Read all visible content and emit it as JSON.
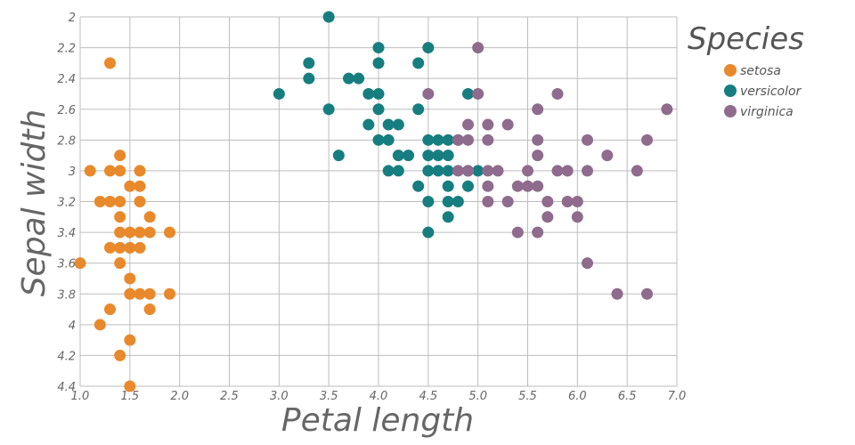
{
  "chart_data": {
    "type": "scatter",
    "xlabel": "Petal length",
    "ylabel": "Sepal width",
    "xlim": [
      1.0,
      7.0
    ],
    "ylim": [
      2.0,
      4.4
    ],
    "y_inverted": true,
    "x_ticks": [
      "1.0",
      "1.5",
      "2.0",
      "2.5",
      "3.0",
      "3.5",
      "4.0",
      "4.5",
      "5.0",
      "5.5",
      "6.0",
      "6.5",
      "7.0"
    ],
    "y_ticks": [
      "2",
      "2.2",
      "2.4",
      "2.6",
      "2.8",
      "3",
      "3.2",
      "3.4",
      "3.6",
      "3.8",
      "4",
      "4.2",
      "4.4"
    ],
    "grid": true,
    "legend": {
      "title": "Species",
      "position": "top-right"
    },
    "series": [
      {
        "name": "setosa",
        "color": "#e8892b",
        "points": [
          [
            1.3,
            2.3
          ],
          [
            1.1,
            3.0
          ],
          [
            1.3,
            3.0
          ],
          [
            1.4,
            3.0
          ],
          [
            1.6,
            3.0
          ],
          [
            1.4,
            2.9
          ],
          [
            1.5,
            3.1
          ],
          [
            1.6,
            3.1
          ],
          [
            1.2,
            3.2
          ],
          [
            1.3,
            3.2
          ],
          [
            1.4,
            3.2
          ],
          [
            1.6,
            3.2
          ],
          [
            1.4,
            3.3
          ],
          [
            1.7,
            3.3
          ],
          [
            1.4,
            3.4
          ],
          [
            1.5,
            3.4
          ],
          [
            1.6,
            3.4
          ],
          [
            1.7,
            3.4
          ],
          [
            1.9,
            3.4
          ],
          [
            1.3,
            3.5
          ],
          [
            1.4,
            3.5
          ],
          [
            1.5,
            3.5
          ],
          [
            1.6,
            3.5
          ],
          [
            1.0,
            3.6
          ],
          [
            1.4,
            3.6
          ],
          [
            1.5,
            3.7
          ],
          [
            1.5,
            3.8
          ],
          [
            1.6,
            3.8
          ],
          [
            1.7,
            3.8
          ],
          [
            1.9,
            3.8
          ],
          [
            1.3,
            3.9
          ],
          [
            1.7,
            3.9
          ],
          [
            1.2,
            4.0
          ],
          [
            1.5,
            4.1
          ],
          [
            1.4,
            4.2
          ],
          [
            1.5,
            4.4
          ]
        ]
      },
      {
        "name": "versicolor",
        "color": "#177e80",
        "points": [
          [
            3.5,
            2.0
          ],
          [
            4.0,
            2.2
          ],
          [
            4.5,
            2.2
          ],
          [
            3.3,
            2.3
          ],
          [
            4.0,
            2.3
          ],
          [
            4.4,
            2.3
          ],
          [
            3.3,
            2.4
          ],
          [
            3.7,
            2.4
          ],
          [
            3.8,
            2.4
          ],
          [
            3.0,
            2.5
          ],
          [
            3.9,
            2.5
          ],
          [
            4.0,
            2.5
          ],
          [
            4.9,
            2.5
          ],
          [
            3.5,
            2.6
          ],
          [
            4.0,
            2.6
          ],
          [
            4.4,
            2.6
          ],
          [
            3.9,
            2.7
          ],
          [
            4.1,
            2.7
          ],
          [
            4.2,
            2.7
          ],
          [
            4.0,
            2.8
          ],
          [
            4.1,
            2.8
          ],
          [
            4.5,
            2.8
          ],
          [
            4.6,
            2.8
          ],
          [
            4.7,
            2.8
          ],
          [
            4.8,
            2.8
          ],
          [
            3.6,
            2.9
          ],
          [
            4.2,
            2.9
          ],
          [
            4.3,
            2.9
          ],
          [
            4.5,
            2.9
          ],
          [
            4.6,
            2.9
          ],
          [
            4.7,
            2.9
          ],
          [
            4.1,
            3.0
          ],
          [
            4.2,
            3.0
          ],
          [
            4.5,
            3.0
          ],
          [
            4.6,
            3.0
          ],
          [
            4.7,
            3.0
          ],
          [
            4.9,
            3.0
          ],
          [
            5.0,
            3.0
          ],
          [
            4.4,
            3.1
          ],
          [
            4.7,
            3.1
          ],
          [
            4.9,
            3.1
          ],
          [
            4.5,
            3.2
          ],
          [
            4.7,
            3.2
          ],
          [
            4.8,
            3.2
          ],
          [
            4.7,
            3.3
          ],
          [
            4.5,
            3.4
          ]
        ]
      },
      {
        "name": "virginica",
        "color": "#8f6b8d",
        "points": [
          [
            5.0,
            2.2
          ],
          [
            4.5,
            2.5
          ],
          [
            5.0,
            2.5
          ],
          [
            5.8,
            2.5
          ],
          [
            5.6,
            2.6
          ],
          [
            6.9,
            2.6
          ],
          [
            4.9,
            2.7
          ],
          [
            5.1,
            2.7
          ],
          [
            5.3,
            2.7
          ],
          [
            4.8,
            2.8
          ],
          [
            4.9,
            2.8
          ],
          [
            5.1,
            2.8
          ],
          [
            5.6,
            2.8
          ],
          [
            6.1,
            2.8
          ],
          [
            6.7,
            2.8
          ],
          [
            5.6,
            2.9
          ],
          [
            6.3,
            2.9
          ],
          [
            4.8,
            3.0
          ],
          [
            4.9,
            3.0
          ],
          [
            5.1,
            3.0
          ],
          [
            5.2,
            3.0
          ],
          [
            5.5,
            3.0
          ],
          [
            5.8,
            3.0
          ],
          [
            5.9,
            3.0
          ],
          [
            6.1,
            3.0
          ],
          [
            6.6,
            3.0
          ],
          [
            5.1,
            3.1
          ],
          [
            5.4,
            3.1
          ],
          [
            5.5,
            3.1
          ],
          [
            5.6,
            3.1
          ],
          [
            5.1,
            3.2
          ],
          [
            5.3,
            3.2
          ],
          [
            5.7,
            3.2
          ],
          [
            5.9,
            3.2
          ],
          [
            6.0,
            3.2
          ],
          [
            5.7,
            3.3
          ],
          [
            6.0,
            3.3
          ],
          [
            5.4,
            3.4
          ],
          [
            5.6,
            3.4
          ],
          [
            6.1,
            3.6
          ],
          [
            6.4,
            3.8
          ],
          [
            6.7,
            3.8
          ]
        ]
      }
    ]
  }
}
